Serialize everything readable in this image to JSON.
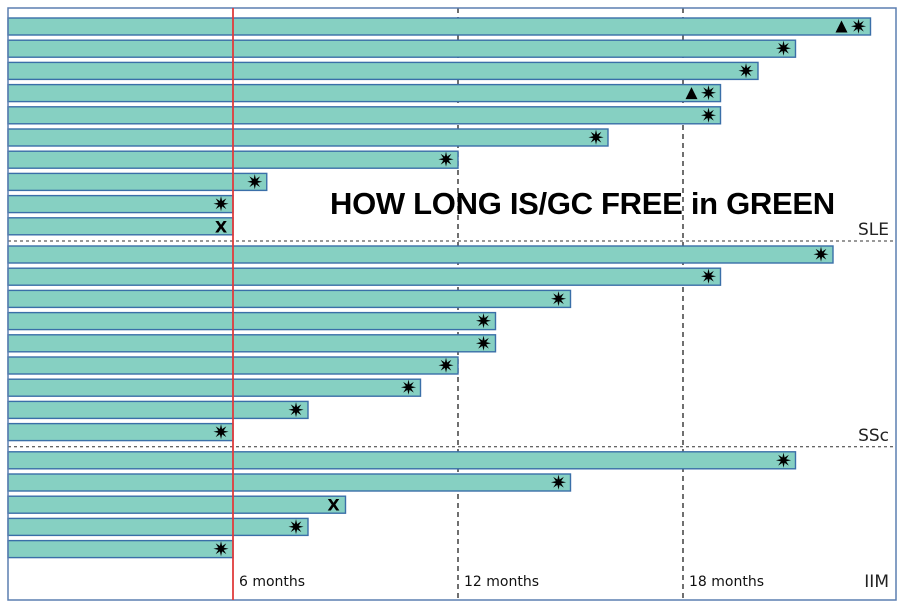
{
  "chart_data": {
    "type": "bar",
    "orientation": "horizontal",
    "title": "HOW LONG IS/GC FREE in GREEN",
    "x_ticks": [
      {
        "value": 6,
        "label": "6 months"
      },
      {
        "value": 12,
        "label": "12 months"
      },
      {
        "value": 18,
        "label": "18 months"
      }
    ],
    "xlim": [
      0,
      24
    ],
    "reference_line": {
      "value": 6,
      "color": "#e03c3c"
    },
    "bar_color": "#86d0c2",
    "bar_border_color": "#3a6fa8",
    "groups": [
      {
        "name": "SLE",
        "bars": [
          {
            "value": 23.0,
            "markers": [
              "triangle",
              "star"
            ]
          },
          {
            "value": 21.0,
            "markers": [
              "star"
            ]
          },
          {
            "value": 20.0,
            "markers": [
              "star"
            ]
          },
          {
            "value": 19.0,
            "markers": [
              "triangle",
              "star"
            ]
          },
          {
            "value": 19.0,
            "markers": [
              "star"
            ]
          },
          {
            "value": 16.0,
            "markers": [
              "star"
            ]
          },
          {
            "value": 12.0,
            "markers": [
              "star"
            ]
          },
          {
            "value": 6.9,
            "markers": [
              "star"
            ]
          },
          {
            "value": 6.0,
            "markers": [
              "star"
            ]
          },
          {
            "value": 6.0,
            "markers": [
              "x"
            ]
          }
        ]
      },
      {
        "name": "SSc",
        "bars": [
          {
            "value": 22.0,
            "markers": [
              "star"
            ]
          },
          {
            "value": 19.0,
            "markers": [
              "star"
            ]
          },
          {
            "value": 15.0,
            "markers": [
              "star"
            ]
          },
          {
            "value": 13.0,
            "markers": [
              "star"
            ]
          },
          {
            "value": 13.0,
            "markers": [
              "star"
            ]
          },
          {
            "value": 12.0,
            "markers": [
              "star"
            ]
          },
          {
            "value": 11.0,
            "markers": [
              "star"
            ]
          },
          {
            "value": 8.0,
            "markers": [
              "star"
            ]
          },
          {
            "value": 6.0,
            "markers": [
              "star"
            ]
          }
        ]
      },
      {
        "name": "IIM",
        "bars": [
          {
            "value": 21.0,
            "markers": [
              "star"
            ]
          },
          {
            "value": 15.0,
            "markers": [
              "star"
            ]
          },
          {
            "value": 9.0,
            "markers": [
              "x"
            ]
          },
          {
            "value": 8.0,
            "markers": [
              "star"
            ]
          },
          {
            "value": 6.0,
            "markers": [
              "star"
            ]
          }
        ]
      }
    ]
  }
}
